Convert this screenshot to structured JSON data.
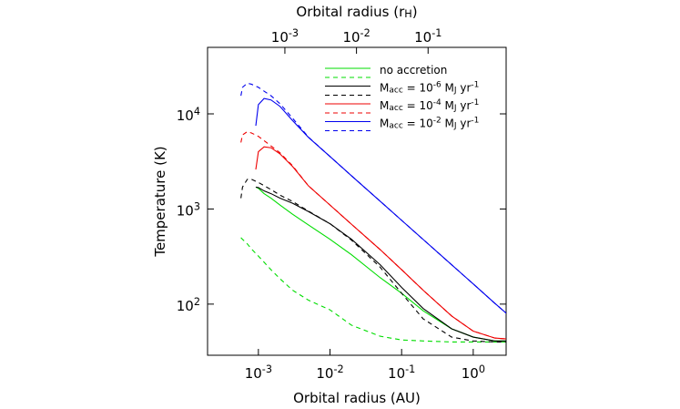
{
  "chart_data": {
    "type": "line",
    "xlabel": "Orbital radius (AU)",
    "x2label": "Orbital radius (r<sub>H</sub>)",
    "ylabel": "Temperature (K)",
    "xscale": "log",
    "yscale": "log",
    "xlim": [
      0.000195,
      2.88
    ],
    "x2lim": [
      8.32e-05,
      1.23
    ],
    "ylim": [
      29,
      50000
    ],
    "xticks": [
      {
        "value": 0.001,
        "label": "10<sup>-3</sup>"
      },
      {
        "value": 0.01,
        "label": "10<sup>-2</sup>"
      },
      {
        "value": 0.1,
        "label": "10<sup>-1</sup>"
      },
      {
        "value": 1,
        "label": "10<sup>0</sup>"
      }
    ],
    "x2ticks": [
      {
        "value": 0.001,
        "label": "10<sup>-3</sup>"
      },
      {
        "value": 0.01,
        "label": "10<sup>-2</sup>"
      },
      {
        "value": 0.1,
        "label": "10<sup>-1</sup>"
      }
    ],
    "yticks": [
      {
        "value": 100,
        "label": "10<sup>2</sup>"
      },
      {
        "value": 1000,
        "label": "10<sup>3</sup>"
      },
      {
        "value": 10000,
        "label": "10<sup>4</sup>"
      }
    ],
    "legend": "upper right",
    "series": [
      {
        "name": "no accretion",
        "color": "#00dd00",
        "linestyle": "solid",
        "x": [
          0.00092,
          0.001,
          0.0012,
          0.0015,
          0.002,
          0.003,
          0.005,
          0.01,
          0.02,
          0.05,
          0.1,
          0.2,
          0.5,
          1,
          2,
          2.9
        ],
        "values": [
          1700,
          1650,
          1450,
          1300,
          1100,
          880,
          680,
          480,
          330,
          190,
          130,
          85,
          55,
          45,
          41,
          41
        ]
      },
      {
        "color": "#00dd00",
        "linestyle": "dashed",
        "x": [
          0.00057,
          0.0006,
          0.0007,
          0.0008,
          0.001,
          0.0015,
          0.002,
          0.003,
          0.005,
          0.01,
          0.02,
          0.05,
          0.1,
          0.2,
          0.5,
          1,
          2,
          2.9
        ],
        "values": [
          500,
          480,
          430,
          380,
          320,
          230,
          185,
          140,
          110,
          87,
          60,
          46,
          42,
          41,
          40,
          40,
          40,
          40
        ]
      },
      {
        "name": "M<sub>acc</sub> = 10<sup>-6</sup> M<sub>J</sub> yr<sup>-1</sup>",
        "color": "#000000",
        "linestyle": "solid",
        "x": [
          0.00092,
          0.001,
          0.0012,
          0.0015,
          0.002,
          0.003,
          0.005,
          0.01,
          0.02,
          0.05,
          0.1,
          0.2,
          0.5,
          1,
          2,
          2.9
        ],
        "values": [
          1700,
          1680,
          1550,
          1450,
          1300,
          1150,
          940,
          700,
          480,
          260,
          150,
          90,
          55,
          45,
          41,
          41
        ]
      },
      {
        "color": "#000000",
        "linestyle": "dashed",
        "x": [
          0.00057,
          0.0006,
          0.0007,
          0.0008,
          0.001,
          0.0015,
          0.002,
          0.003,
          0.005,
          0.01,
          0.02,
          0.05,
          0.1,
          0.2,
          0.5,
          1,
          2,
          2.9
        ],
        "values": [
          1300,
          1700,
          2050,
          2050,
          1900,
          1600,
          1400,
          1200,
          950,
          700,
          470,
          245,
          130,
          70,
          45,
          41,
          40,
          40
        ]
      },
      {
        "name": "M<sub>acc</sub> = 10<sup>-4</sup> M<sub>J</sub> yr<sup>-1</sup>",
        "color": "#ee0000",
        "linestyle": "solid",
        "x": [
          0.00092,
          0.001,
          0.0012,
          0.0015,
          0.002,
          0.003,
          0.005,
          0.01,
          0.02,
          0.05,
          0.1,
          0.2,
          0.5,
          1,
          2,
          2.9
        ],
        "values": [
          2600,
          4000,
          4500,
          4400,
          3800,
          2800,
          1750,
          1100,
          690,
          375,
          230,
          140,
          75,
          52,
          44,
          43
        ]
      },
      {
        "color": "#ee0000",
        "linestyle": "dashed",
        "x": [
          0.00057,
          0.0006,
          0.0007,
          0.0008,
          0.001,
          0.0015,
          0.002,
          0.003,
          0.005,
          0.01,
          0.02,
          0.05,
          0.1,
          0.2,
          0.5,
          1,
          2,
          2.9
        ],
        "values": [
          5000,
          6000,
          6500,
          6300,
          5800,
          4600,
          3900,
          2850,
          1750,
          1100,
          690,
          375,
          230,
          140,
          75,
          52,
          44,
          43
        ]
      },
      {
        "name": "M<sub>acc</sub> = 10<sup>-2</sup> M<sub>J</sub> yr<sup>-1</sup>",
        "color": "#0000ee",
        "linestyle": "solid",
        "x": [
          0.00092,
          0.001,
          0.0012,
          0.0015,
          0.002,
          0.003,
          0.005,
          0.01,
          0.02,
          0.05,
          0.1,
          0.2,
          0.5,
          1,
          2,
          2.9
        ],
        "values": [
          7500,
          12500,
          14500,
          14000,
          12000,
          8500,
          5660,
          3560,
          2230,
          1210,
          760,
          478,
          259,
          163,
          102,
          80
        ]
      },
      {
        "color": "#0000ee",
        "linestyle": "dashed",
        "x": [
          0.00057,
          0.0006,
          0.0007,
          0.0008,
          0.001,
          0.0015,
          0.002,
          0.003,
          0.005,
          0.01,
          0.02,
          0.05,
          0.1,
          0.2,
          0.5,
          1,
          2,
          2.9
        ],
        "values": [
          15500,
          19000,
          21000,
          20500,
          19000,
          15500,
          12800,
          9000,
          5700,
          3560,
          2230,
          1210,
          760,
          478,
          259,
          163,
          102,
          80
        ]
      }
    ]
  }
}
